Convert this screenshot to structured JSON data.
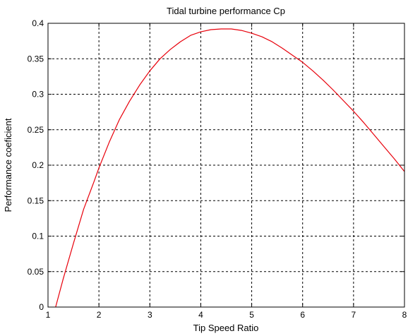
{
  "chart_data": {
    "type": "line",
    "title": "Tidal turbine performance Cp",
    "xlabel": "Tip Speed Ratio",
    "ylabel": "Performance coeficient",
    "xlim": [
      1,
      8
    ],
    "ylim": [
      0,
      0.4
    ],
    "xticks": [
      1,
      2,
      3,
      4,
      5,
      6,
      7,
      8
    ],
    "yticks": [
      0,
      0.05,
      0.1,
      0.15,
      0.2,
      0.25,
      0.3,
      0.35,
      0.4
    ],
    "ytick_labels": [
      "0",
      "0.05",
      "0.1",
      "0.15",
      "0.2",
      "0.25",
      "0.3",
      "0.35",
      "0.4"
    ],
    "grid": true,
    "series": [
      {
        "color": "#e8000b",
        "x": [
          1.15,
          1.3,
          1.5,
          1.7,
          1.9,
          2.0,
          2.2,
          2.4,
          2.6,
          2.8,
          3.0,
          3.2,
          3.4,
          3.6,
          3.8,
          4.0,
          4.2,
          4.4,
          4.6,
          4.8,
          5.0,
          5.2,
          5.4,
          5.6,
          5.8,
          6.0,
          6.2,
          6.4,
          6.6,
          6.8,
          7.0,
          7.2,
          7.4,
          7.6,
          7.8,
          8.0
        ],
        "y": [
          0.0,
          0.04,
          0.09,
          0.138,
          0.176,
          0.196,
          0.232,
          0.264,
          0.29,
          0.313,
          0.333,
          0.35,
          0.363,
          0.374,
          0.383,
          0.388,
          0.391,
          0.392,
          0.392,
          0.39,
          0.386,
          0.381,
          0.374,
          0.365,
          0.355,
          0.345,
          0.333,
          0.32,
          0.306,
          0.291,
          0.276,
          0.26,
          0.243,
          0.226,
          0.209,
          0.191
        ]
      }
    ]
  }
}
